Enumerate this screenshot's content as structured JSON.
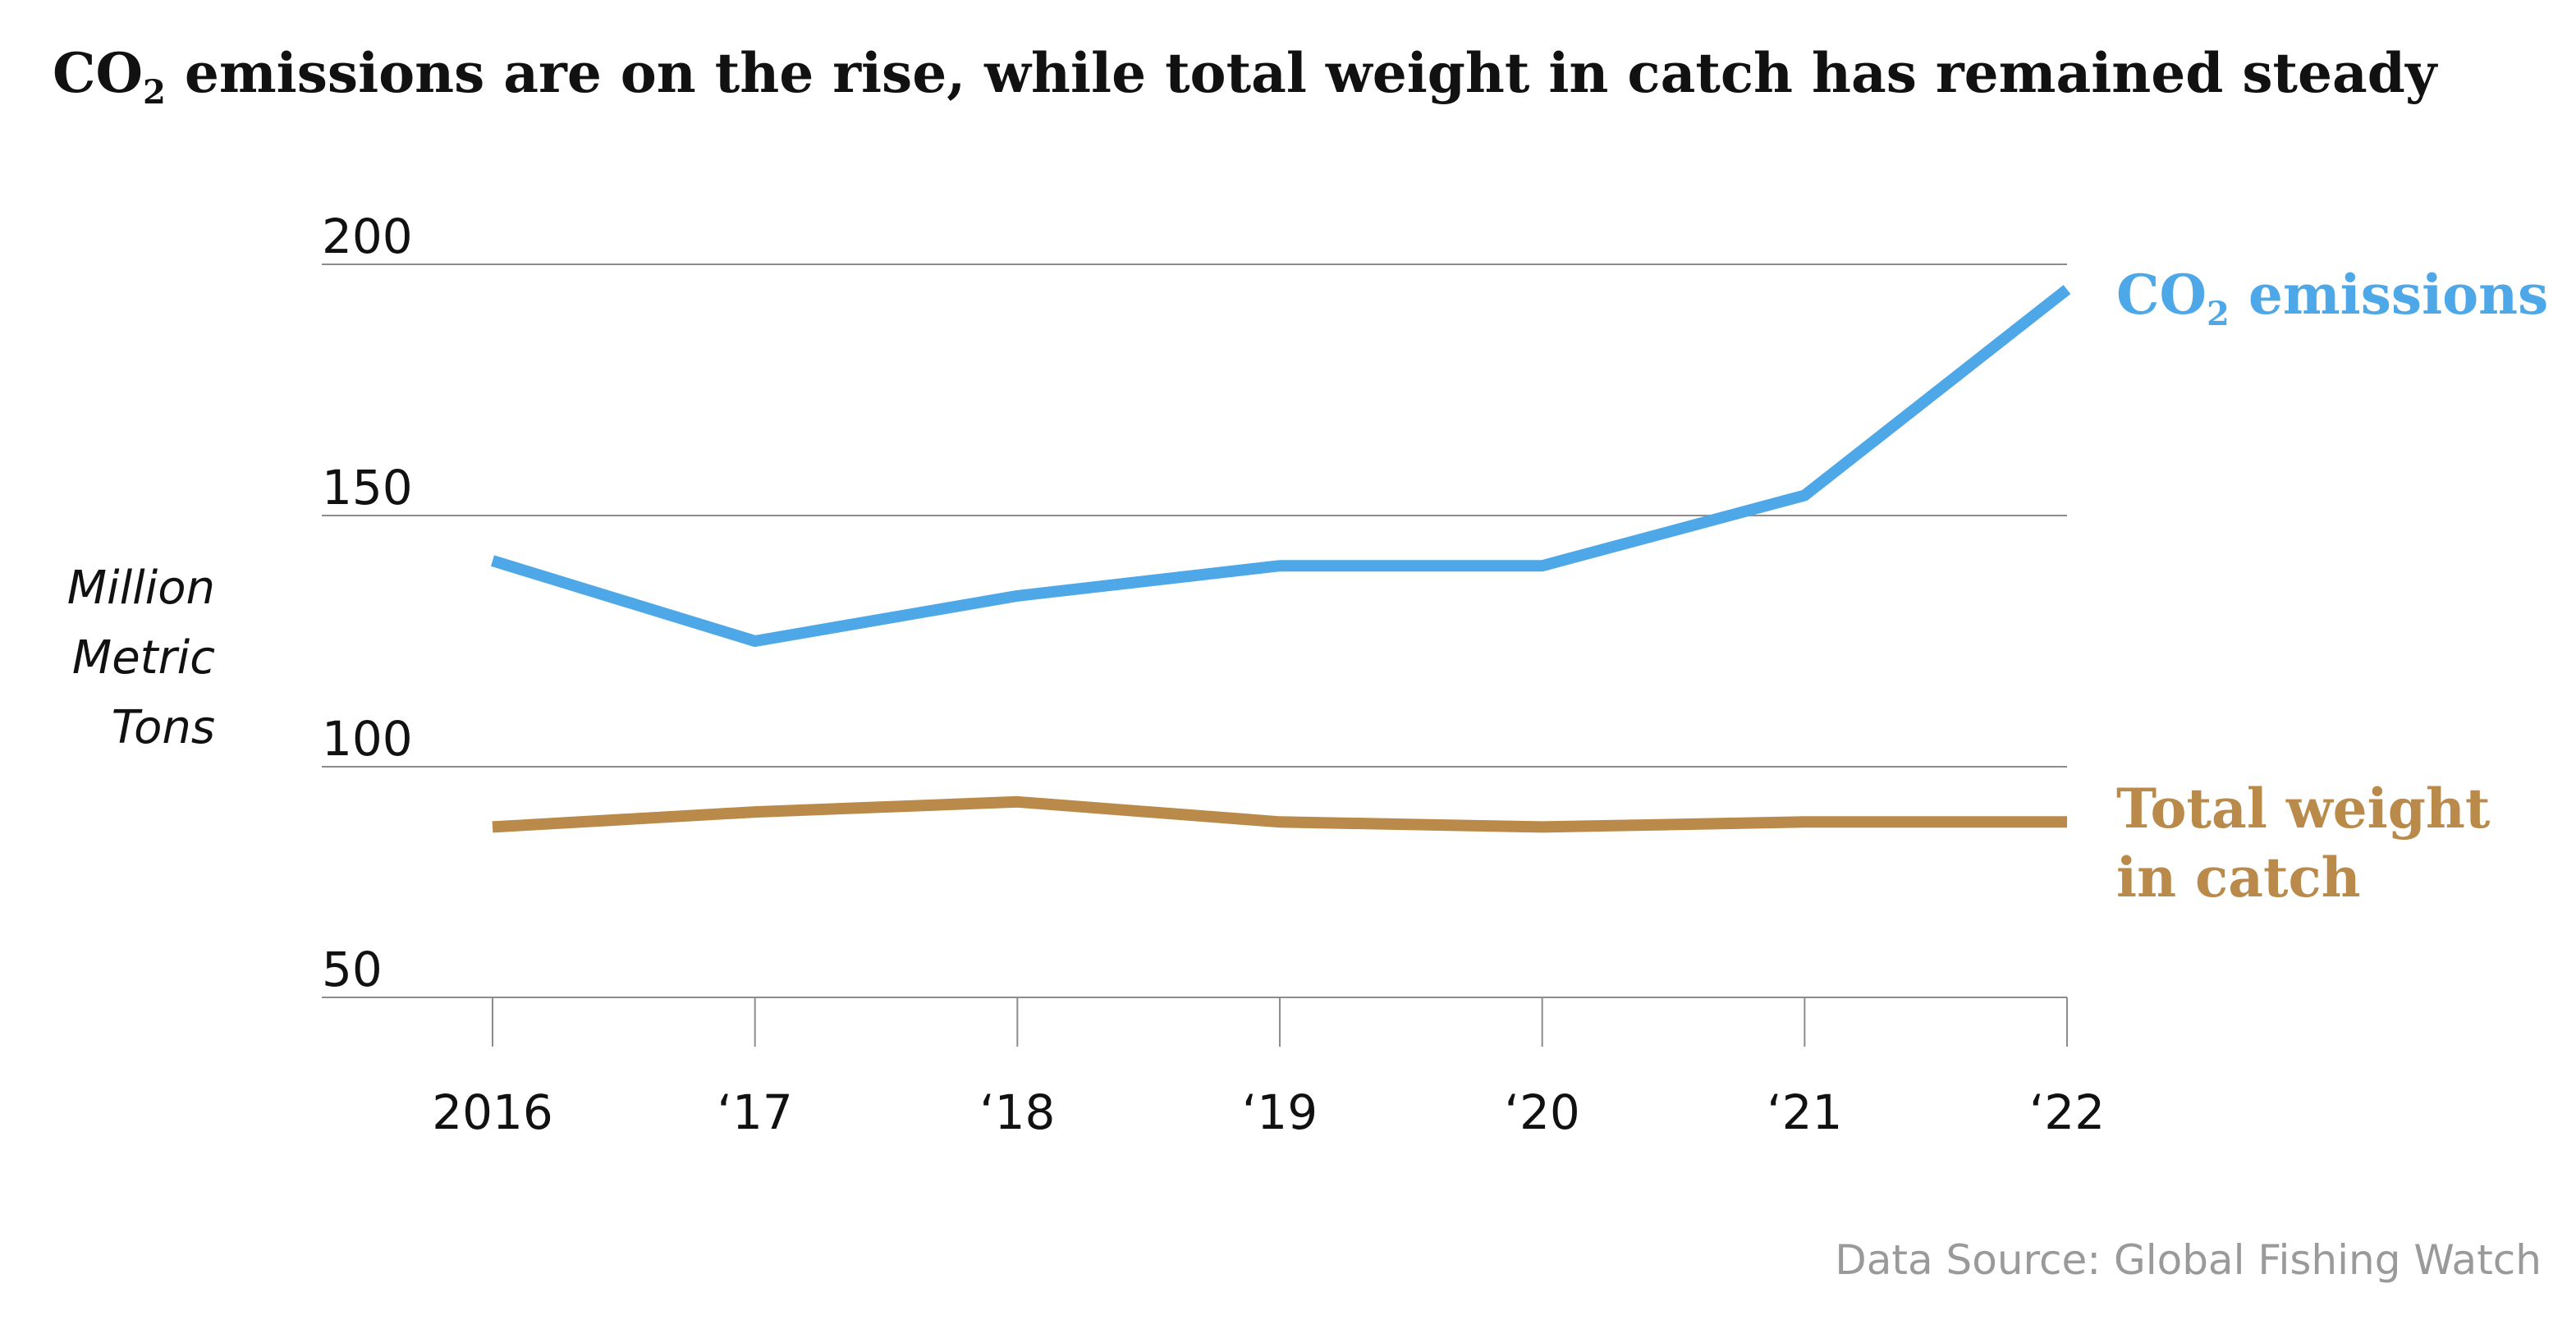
{
  "chart_data": {
    "type": "line",
    "title": {
      "prefix": "CO",
      "subscript": "2",
      "suffix": " emissions are on the rise, while total weight in catch has remained steady"
    },
    "ylabel_lines": [
      "Million",
      "Metric",
      "Tons"
    ],
    "categories": [
      "2016",
      "‘17",
      "‘18",
      "‘19",
      "‘20",
      "‘21",
      "‘22"
    ],
    "y_ticks": [
      50,
      100,
      150,
      200
    ],
    "ylim": [
      50,
      200
    ],
    "grid": true,
    "series": [
      {
        "key": "co2",
        "label_prefix": "CO",
        "label_subscript": "2",
        "label_suffix": " emissions",
        "color": "#4ea8e8",
        "values": [
          141,
          125,
          134,
          140,
          140,
          154,
          195
        ]
      },
      {
        "key": "catch",
        "label_lines": [
          "Total weight",
          "in catch"
        ],
        "color": "#b98a4a",
        "values": [
          88,
          91,
          93,
          89,
          88,
          89,
          89
        ]
      }
    ],
    "source": "Data Source: Global Fishing Watch"
  }
}
